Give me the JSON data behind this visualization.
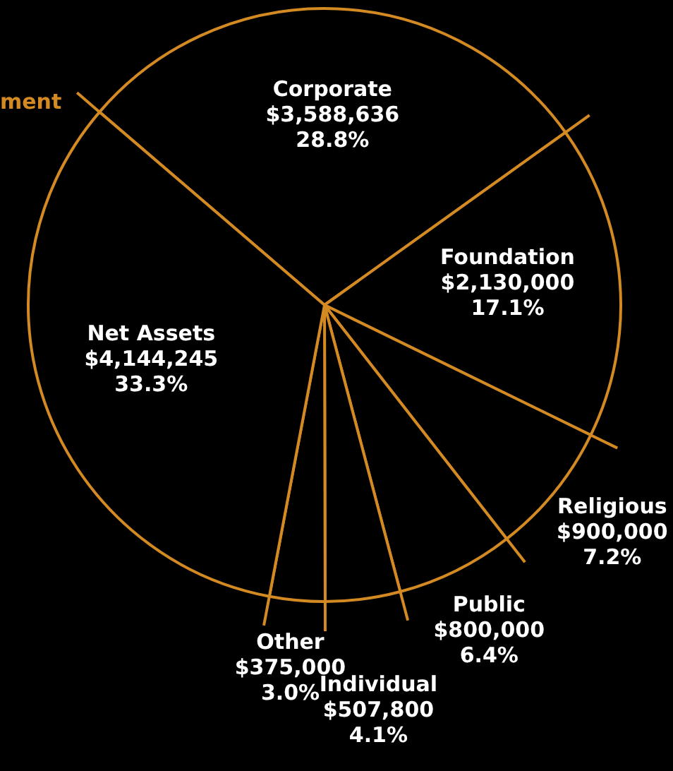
{
  "chart_data": {
    "type": "pie",
    "categories": [
      "Corporate",
      "Foundation",
      "Religious",
      "Public",
      "Individual",
      "Other",
      "Net Assets"
    ],
    "values": [
      3588636,
      2130000,
      900000,
      800000,
      507800,
      375000,
      4144245
    ],
    "value_labels": [
      "$3,588,636\n28.8%",
      "$2,130,000\n17.1%",
      "$900,000\n7.2%",
      "$800,000\n6.4%",
      "$507,800\n4.1%",
      "$375,000\n3.0%",
      "$4,144,245\n33.3%"
    ],
    "colors": [
      "#000000",
      "#000000",
      "#000000",
      "#000000",
      "#000000",
      "#000000",
      "#000000"
    ],
    "annotations": [
      "ment"
    ]
  }
}
